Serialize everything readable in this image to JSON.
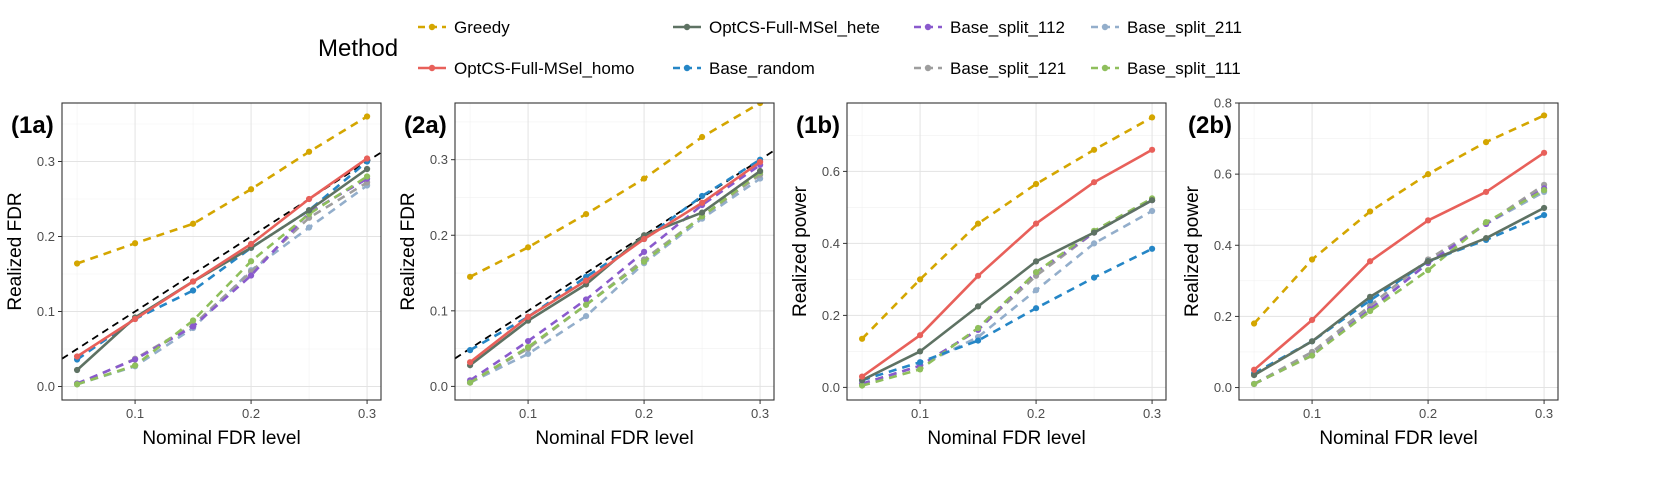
{
  "legend": {
    "title": "Method",
    "entries": [
      {
        "name": "Greedy",
        "color": "#D4A600",
        "dash": "dashed"
      },
      {
        "name": "OptCS-Full-MSel_homo",
        "color": "#E8605A",
        "dash": "solid"
      },
      {
        "name": "OptCS-Full-MSel_hete",
        "color": "#5E7263",
        "dash": "solid"
      },
      {
        "name": "Base_random",
        "color": "#2586C6",
        "dash": "dashed"
      },
      {
        "name": "Base_split_112",
        "color": "#8A5ACD",
        "dash": "dashed"
      },
      {
        "name": "Base_split_121",
        "color": "#9E9E9E",
        "dash": "dashed"
      },
      {
        "name": "Base_split_211",
        "color": "#93AECB",
        "dash": "dashed"
      },
      {
        "name": "Base_split_111",
        "color": "#8FBF5C",
        "dash": "dashed"
      }
    ]
  },
  "chart_data": [
    {
      "type": "line",
      "title": "(1a)",
      "xlabel": "Nominal FDR level",
      "ylabel": "Realized FDR",
      "x": [
        0.05,
        0.1,
        0.15,
        0.2,
        0.25,
        0.3
      ],
      "xticks": [
        0.1,
        0.2,
        0.3
      ],
      "xtick_labels": [
        "0.1",
        "0.2",
        "0.3"
      ],
      "xlim": [
        0.037,
        0.312
      ],
      "ylim": [
        -0.018,
        0.378
      ],
      "yticks": [
        0.0,
        0.1,
        0.2,
        0.3
      ],
      "ytick_labels": [
        "0.0",
        "0.1",
        "0.2",
        "0.3"
      ],
      "reference_line": true,
      "series": [
        {
          "name": "Base_split_211",
          "values": [
            0.003,
            0.027,
            0.078,
            0.155,
            0.212,
            0.268
          ]
        },
        {
          "name": "Base_split_121",
          "values": [
            0.003,
            0.037,
            0.082,
            0.153,
            0.225,
            0.272
          ]
        },
        {
          "name": "Base_split_112",
          "values": [
            0.004,
            0.036,
            0.08,
            0.148,
            0.232,
            0.277
          ]
        },
        {
          "name": "Base_split_111",
          "values": [
            0.003,
            0.028,
            0.088,
            0.167,
            0.23,
            0.28
          ]
        },
        {
          "name": "Base_random",
          "values": [
            0.036,
            0.09,
            0.128,
            0.185,
            0.235,
            0.3
          ]
        },
        {
          "name": "OptCS-Full-MSel_hete",
          "values": [
            0.022,
            0.092,
            0.14,
            0.185,
            0.235,
            0.29
          ]
        },
        {
          "name": "OptCS-Full-MSel_homo",
          "values": [
            0.04,
            0.09,
            0.14,
            0.19,
            0.25,
            0.304
          ]
        },
        {
          "name": "Greedy",
          "values": [
            0.164,
            0.191,
            0.217,
            0.263,
            0.313,
            0.36
          ]
        }
      ]
    },
    {
      "type": "line",
      "title": "(2a)",
      "xlabel": "Nominal FDR level",
      "ylabel": "Realized FDR",
      "x": [
        0.05,
        0.1,
        0.15,
        0.2,
        0.25,
        0.3
      ],
      "xticks": [
        0.1,
        0.2,
        0.3
      ],
      "xtick_labels": [
        "0.1",
        "0.2",
        "0.3"
      ],
      "xlim": [
        0.037,
        0.312
      ],
      "ylim": [
        -0.018,
        0.375
      ],
      "yticks": [
        0.0,
        0.1,
        0.2,
        0.3
      ],
      "ytick_labels": [
        "0.0",
        "0.1",
        "0.2",
        "0.3"
      ],
      "reference_line": true,
      "series": [
        {
          "name": "Base_split_211",
          "values": [
            0.005,
            0.043,
            0.093,
            0.163,
            0.222,
            0.275
          ]
        },
        {
          "name": "Base_split_121",
          "values": [
            0.005,
            0.05,
            0.108,
            0.168,
            0.225,
            0.28
          ]
        },
        {
          "name": "Base_split_112",
          "values": [
            0.008,
            0.06,
            0.115,
            0.178,
            0.24,
            0.293
          ]
        },
        {
          "name": "Base_split_111",
          "values": [
            0.005,
            0.052,
            0.108,
            0.165,
            0.225,
            0.283
          ]
        },
        {
          "name": "Base_random",
          "values": [
            0.048,
            0.092,
            0.145,
            0.195,
            0.252,
            0.3
          ]
        },
        {
          "name": "OptCS-Full-MSel_hete",
          "values": [
            0.028,
            0.087,
            0.135,
            0.2,
            0.23,
            0.285
          ]
        },
        {
          "name": "OptCS-Full-MSel_homo",
          "values": [
            0.032,
            0.092,
            0.14,
            0.195,
            0.243,
            0.297
          ]
        },
        {
          "name": "Greedy",
          "values": [
            0.145,
            0.184,
            0.228,
            0.275,
            0.33,
            0.375
          ]
        }
      ]
    },
    {
      "type": "line",
      "title": "(1b)",
      "xlabel": "Nominal FDR level",
      "ylabel": "Realized power",
      "x": [
        0.05,
        0.1,
        0.15,
        0.2,
        0.25,
        0.3
      ],
      "xticks": [
        0.1,
        0.2,
        0.3
      ],
      "xtick_labels": [
        "0.1",
        "0.2",
        "0.3"
      ],
      "xlim": [
        0.037,
        0.312
      ],
      "ylim": [
        -0.035,
        0.79
      ],
      "yticks": [
        0.0,
        0.2,
        0.4,
        0.6
      ],
      "ytick_labels": [
        "0.0",
        "0.2",
        "0.4",
        "0.6"
      ],
      "reference_line": false,
      "series": [
        {
          "name": "Base_split_211",
          "values": [
            0.01,
            0.06,
            0.14,
            0.27,
            0.4,
            0.49
          ]
        },
        {
          "name": "Base_split_121",
          "values": [
            0.01,
            0.06,
            0.16,
            0.31,
            0.43,
            0.52
          ]
        },
        {
          "name": "Base_split_112",
          "values": [
            0.01,
            0.06,
            0.16,
            0.32,
            0.43,
            0.52
          ]
        },
        {
          "name": "Base_split_111",
          "values": [
            0.005,
            0.05,
            0.165,
            0.32,
            0.435,
            0.525
          ]
        },
        {
          "name": "Base_random",
          "values": [
            0.02,
            0.07,
            0.13,
            0.22,
            0.305,
            0.385
          ]
        },
        {
          "name": "OptCS-Full-MSel_hete",
          "values": [
            0.02,
            0.1,
            0.225,
            0.35,
            0.43,
            0.52
          ]
        },
        {
          "name": "OptCS-Full-MSel_homo",
          "values": [
            0.03,
            0.145,
            0.31,
            0.455,
            0.57,
            0.66
          ]
        },
        {
          "name": "Greedy",
          "values": [
            0.135,
            0.3,
            0.455,
            0.565,
            0.66,
            0.75
          ]
        }
      ]
    },
    {
      "type": "line",
      "title": "(2b)",
      "xlabel": "Nominal FDR level",
      "ylabel": "Realized power",
      "x": [
        0.05,
        0.1,
        0.15,
        0.2,
        0.25,
        0.3
      ],
      "xticks": [
        0.1,
        0.2,
        0.3
      ],
      "xtick_labels": [
        "0.1",
        "0.2",
        "0.3"
      ],
      "xlim": [
        0.037,
        0.312
      ],
      "ylim": [
        -0.035,
        0.8
      ],
      "yticks": [
        0.0,
        0.2,
        0.4,
        0.6,
        0.8
      ],
      "ytick_labels": [
        "0.0",
        "0.2",
        "0.4",
        "0.6",
        "0.8"
      ],
      "reference_line": false,
      "series": [
        {
          "name": "Base_split_211",
          "values": [
            0.01,
            0.1,
            0.22,
            0.35,
            0.46,
            0.55
          ]
        },
        {
          "name": "Base_split_121",
          "values": [
            0.01,
            0.1,
            0.23,
            0.36,
            0.46,
            0.57
          ]
        },
        {
          "name": "Base_split_112",
          "values": [
            0.01,
            0.09,
            0.22,
            0.35,
            0.46,
            0.56
          ]
        },
        {
          "name": "Base_split_111",
          "values": [
            0.01,
            0.09,
            0.215,
            0.33,
            0.465,
            0.555
          ]
        },
        {
          "name": "Base_random",
          "values": [
            0.04,
            0.13,
            0.245,
            0.355,
            0.415,
            0.485
          ]
        },
        {
          "name": "OptCS-Full-MSel_hete",
          "values": [
            0.035,
            0.13,
            0.255,
            0.355,
            0.42,
            0.505
          ]
        },
        {
          "name": "OptCS-Full-MSel_homo",
          "values": [
            0.05,
            0.19,
            0.355,
            0.47,
            0.55,
            0.66
          ]
        },
        {
          "name": "Greedy",
          "values": [
            0.18,
            0.36,
            0.495,
            0.6,
            0.69,
            0.765
          ]
        }
      ]
    }
  ]
}
